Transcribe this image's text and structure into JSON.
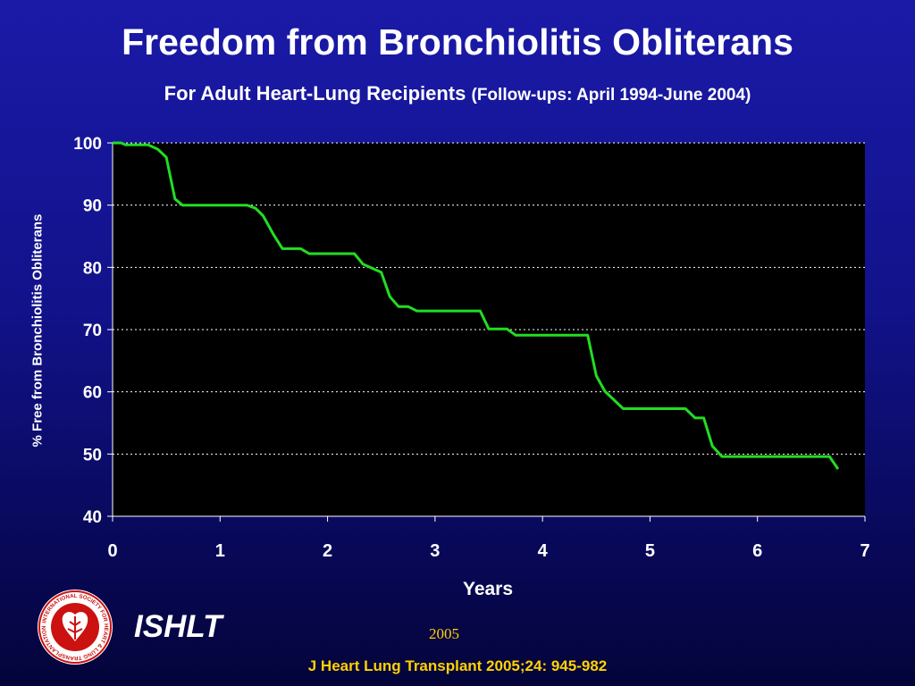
{
  "slide": {
    "title": "Freedom from Bronchiolitis Obliterans",
    "subtitle_main": "For Adult Heart-Lung Recipients",
    "subtitle_note": "(Follow-ups: April 1994-June 2004)",
    "brand": "ISHLT",
    "year": "2005",
    "citation": "J Heart Lung Transplant 2005;24: 945-982",
    "logo_text": "INTERNATIONAL SOCIETY FOR HEART & LUNG TRANSPLANTATION"
  },
  "colors": {
    "background": "#12128a",
    "plot_background": "#000000",
    "curve": "#22dd22",
    "accent_text": "#ffd200"
  },
  "chart_data": {
    "type": "line",
    "xlabel": "Years",
    "ylabel": "% Free from Bronchiolitis Obliterans",
    "xlim": [
      0,
      7
    ],
    "ylim": [
      40,
      100
    ],
    "xticks": [
      0,
      1,
      2,
      3,
      4,
      5,
      6,
      7
    ],
    "yticks": [
      40,
      50,
      60,
      70,
      80,
      90,
      100
    ],
    "grid": "horizontal dotted",
    "series": [
      {
        "name": "",
        "x": [
          0,
          0.08,
          0.12,
          0.33,
          0.42,
          0.5,
          0.58,
          0.65,
          1.25,
          1.33,
          1.4,
          1.5,
          1.58,
          1.75,
          1.83,
          2.25,
          2.33,
          2.5,
          2.58,
          2.66,
          2.75,
          2.83,
          3.42,
          3.5,
          3.67,
          3.75,
          4.42,
          4.5,
          4.58,
          4.75,
          5.33,
          5.42,
          5.5,
          5.58,
          5.67,
          6.67,
          6.75
        ],
        "y": [
          100,
          100,
          99.7,
          99.7,
          99,
          97.7,
          91,
          90,
          90,
          89.5,
          88.3,
          85.2,
          83,
          83,
          82.2,
          82.2,
          80.5,
          79.2,
          75.3,
          73.7,
          73.7,
          73,
          73,
          70.1,
          70.1,
          69.1,
          69.1,
          62.6,
          60.1,
          57.3,
          57.3,
          55.8,
          55.8,
          51.3,
          49.6,
          49.6,
          47.6
        ]
      }
    ]
  }
}
